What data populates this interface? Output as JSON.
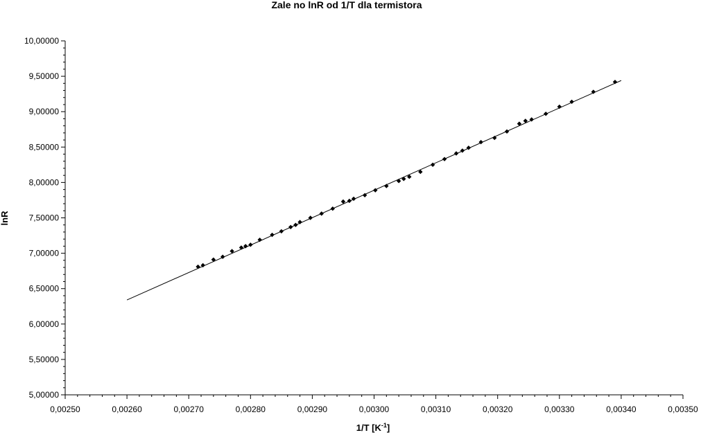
{
  "chart_data": {
    "type": "scatter",
    "title": "Zale  no      lnR od 1/T dla termistora",
    "xlabel": "1/T [K",
    "xlabel_sup": "-1",
    "xlabel_close": "]",
    "ylabel": "lnR",
    "xlim": [
      0.0025,
      0.0035
    ],
    "ylim": [
      5.0,
      10.0
    ],
    "x_ticks": [
      "0,00250",
      "0,00260",
      "0,00270",
      "0,00280",
      "0,00290",
      "0,00300",
      "0,00310",
      "0,00320",
      "0,00330",
      "0,00340",
      "0,00350"
    ],
    "y_ticks": [
      "5,00000",
      "5,50000",
      "6,00000",
      "6,50000",
      "7,00000",
      "7,50000",
      "8,00000",
      "8,50000",
      "9,00000",
      "9,50000",
      "10,00000"
    ],
    "grid": false,
    "legend": "none",
    "marker_color": "#000000",
    "trendline": {
      "x": [
        0.0026,
        0.0034
      ],
      "y": [
        6.34,
        9.44
      ]
    },
    "series": [
      {
        "x": [
          0.002715,
          0.002723,
          0.00274,
          0.002755,
          0.00277,
          0.002785,
          0.002792,
          0.0028,
          0.002815,
          0.002835,
          0.00285,
          0.002865,
          0.002873,
          0.00288,
          0.002897,
          0.002915,
          0.002933,
          0.00295,
          0.00296,
          0.002967,
          0.002985,
          0.003002,
          0.00302,
          0.00304,
          0.003048,
          0.003057,
          0.003075,
          0.003095,
          0.003114,
          0.003133,
          0.003143,
          0.003153,
          0.003173,
          0.003195,
          0.003215,
          0.003235,
          0.003245,
          0.003255,
          0.003278,
          0.0033,
          0.00332,
          0.003355,
          0.00339
        ],
        "y": [
          6.81,
          6.83,
          6.91,
          6.95,
          7.03,
          7.08,
          7.1,
          7.12,
          7.19,
          7.26,
          7.31,
          7.37,
          7.4,
          7.44,
          7.5,
          7.56,
          7.63,
          7.73,
          7.74,
          7.77,
          7.82,
          7.89,
          7.95,
          8.02,
          8.05,
          8.08,
          8.15,
          8.25,
          8.33,
          8.41,
          8.45,
          8.49,
          8.57,
          8.63,
          8.72,
          8.83,
          8.87,
          8.89,
          8.97,
          9.07,
          9.14,
          9.28,
          9.42
        ]
      }
    ]
  }
}
